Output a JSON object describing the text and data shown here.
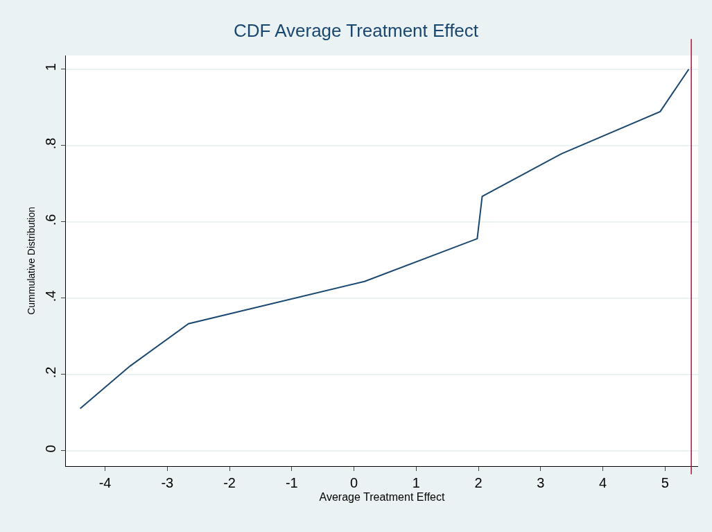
{
  "chart_data": {
    "type": "line",
    "title": "CDF Average Treatment Effect",
    "xlabel": "Average Treatment Effect",
    "ylabel": "Cummulative Distribution",
    "x": [
      -4.4,
      -3.6,
      -2.66,
      0.17,
      1.98,
      2.06,
      3.33,
      4.92,
      5.38
    ],
    "series": [
      {
        "color": "#1a476f",
        "values": [
          0.111,
          0.222,
          0.333,
          0.444,
          0.556,
          0.667,
          0.778,
          0.889,
          1.0
        ]
      }
    ],
    "xlim": [
      -4.63,
      5.53
    ],
    "xticks": [
      -4,
      -3,
      -2,
      -1,
      0,
      1,
      2,
      3,
      4,
      5
    ],
    "ylim": [
      -0.04,
      1.036
    ],
    "yticks": [
      {
        "value": 0,
        "label": "0"
      },
      {
        "value": 0.2,
        "label": ".2"
      },
      {
        "value": 0.4,
        "label": ".4"
      },
      {
        "value": 0.6,
        "label": ".6"
      },
      {
        "value": 0.8,
        "label": ".8"
      },
      {
        "value": 1,
        "label": "1"
      }
    ],
    "ref_lines": [
      {
        "axis": "x",
        "value": 5.42,
        "color": "#c10534"
      }
    ],
    "grid": "y",
    "marker": "none",
    "line_style": "solid"
  }
}
